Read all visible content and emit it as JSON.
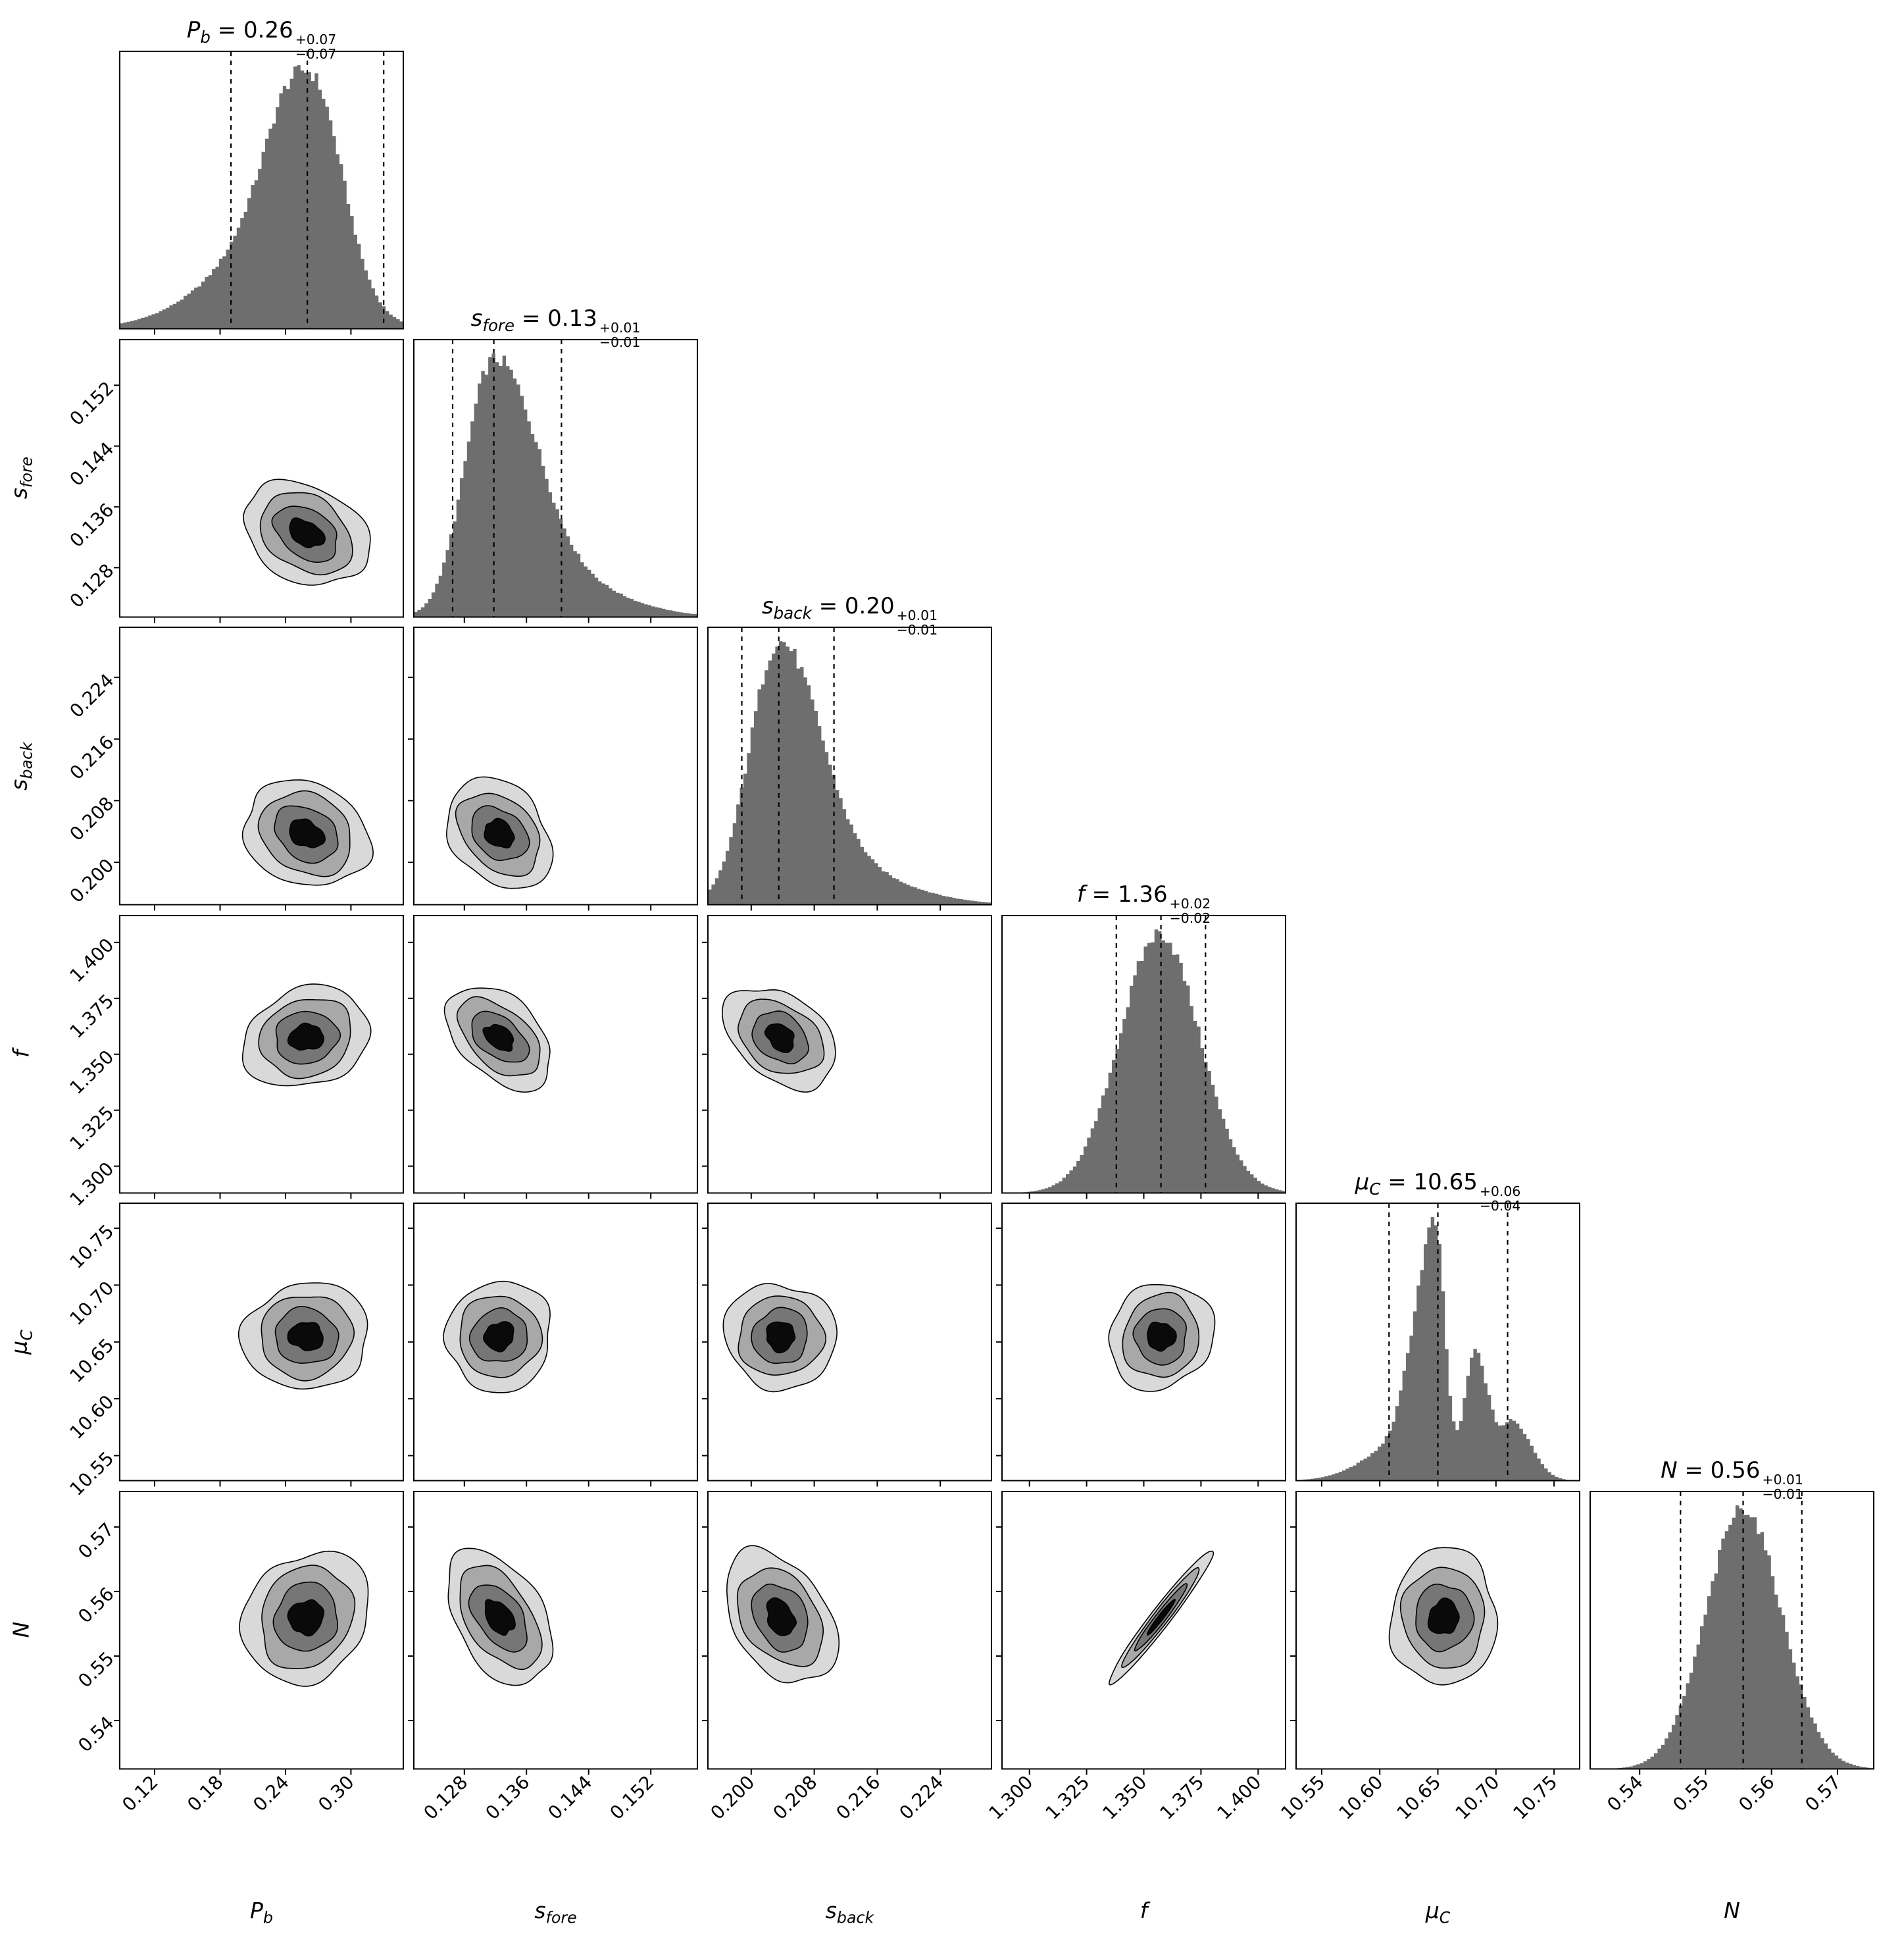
{
  "figure": {
    "background": "#ffffff"
  },
  "chart_data": {
    "type": "corner",
    "description": "6-parameter MCMC posterior corner plot: diagonal shows 1D marginal histograms with dashed lines at the 16th/50th/84th percentiles; lower triangle shows 2D filled grayscale contour plots for each parameter pair.",
    "style": {
      "hist_fill": "#6e6e6e",
      "line_color": "#000000",
      "contour_fills": [
        "#d9d9d9",
        "#a8a8a8",
        "#767676",
        "#0a0a0a"
      ],
      "levels": [
        2.05,
        1.55,
        1.05,
        0.55
      ],
      "amps": [
        0.085,
        0.075,
        0.08,
        0.13
      ]
    },
    "parameters": [
      {
        "id": "P_b",
        "label_main": "P",
        "label_sub": "b",
        "value": "0.26",
        "plus": "+0.07",
        "minus": "−0.07",
        "range": [
          0.088,
          0.348
        ],
        "tick_labels": [
          "0.12",
          "0.18",
          "0.24",
          "0.30"
        ],
        "quantiles": [
          0.19,
          0.26,
          0.33
        ],
        "center": 0.259,
        "sigma2d": 0.028,
        "hist": [
          {
            "mu": 0.264,
            "sl": 0.034,
            "sr": 0.027,
            "a": 1.0
          },
          {
            "mu": 0.228,
            "sl": 0.05,
            "sr": 0.02,
            "a": 0.22
          },
          {
            "mu": 0.2,
            "sl": 0.06,
            "sr": 0.03,
            "a": 0.1
          },
          {
            "mu": 0.3,
            "sl": 0.018,
            "sr": 0.03,
            "a": 0.07
          }
        ]
      },
      {
        "id": "s_fore",
        "label_main": "s",
        "label_sub": "fore",
        "value": "0.13",
        "plus": "+0.01",
        "minus": "−0.01",
        "range": [
          0.1215,
          0.158
        ],
        "tick_labels": [
          "0.128",
          "0.136",
          "0.144",
          "0.152"
        ],
        "quantiles": [
          0.1265,
          0.1318,
          0.1405
        ],
        "center": 0.1325,
        "sigma2d": 0.0034,
        "hist": [
          {
            "mu": 0.1315,
            "sl": 0.0035,
            "sr": 0.0052,
            "a": 1.0
          },
          {
            "mu": 0.138,
            "sl": 0.004,
            "sr": 0.0085,
            "a": 0.18
          }
        ]
      },
      {
        "id": "s_back",
        "label_main": "s",
        "label_sub": "back",
        "value": "0.20",
        "plus": "+0.01",
        "minus": "−0.01",
        "range": [
          0.1945,
          0.2305
        ],
        "tick_labels": [
          "0.200",
          "0.208",
          "0.216",
          "0.224"
        ],
        "quantiles": [
          0.1988,
          0.2035,
          0.2105
        ],
        "center": 0.2037,
        "sigma2d": 0.0034,
        "hist": [
          {
            "mu": 0.2033,
            "sl": 0.0036,
            "sr": 0.005,
            "a": 1.0
          },
          {
            "mu": 0.21,
            "sl": 0.004,
            "sr": 0.0085,
            "a": 0.15
          }
        ]
      },
      {
        "id": "f",
        "label_main": "f",
        "label_sub": "",
        "value": "1.36",
        "plus": "+0.02",
        "minus": "−0.02",
        "range": [
          1.288,
          1.412
        ],
        "tick_labels": [
          "1.300",
          "1.325",
          "1.350",
          "1.375",
          "1.400"
        ],
        "quantiles": [
          1.338,
          1.3575,
          1.377
        ],
        "center": 1.3575,
        "sigma2d": 0.011,
        "hist": [
          {
            "mu": 1.357,
            "sl": 0.0175,
            "sr": 0.0175,
            "a": 1.0
          }
        ]
      },
      {
        "id": "mu_C",
        "label_main": "μ",
        "label_sub": "C",
        "value": "10.65",
        "plus": "+0.06",
        "minus": "−0.04",
        "range": [
          10.528,
          10.772
        ],
        "tick_labels": [
          "10.55",
          "10.60",
          "10.65",
          "10.70",
          "10.75"
        ],
        "quantiles": [
          10.608,
          10.65,
          10.71
        ],
        "center": 10.655,
        "sigma2d": 0.023,
        "hist": [
          {
            "mu": 10.6475,
            "sl": 0.0165,
            "sr": 0.0085,
            "a": 1.0
          },
          {
            "mu": 10.682,
            "sl": 0.009,
            "sr": 0.012,
            "a": 0.5
          },
          {
            "mu": 10.715,
            "sl": 0.01,
            "sr": 0.016,
            "a": 0.22
          },
          {
            "mu": 10.62,
            "sl": 0.032,
            "sr": 0.01,
            "a": 0.14
          }
        ]
      },
      {
        "id": "N",
        "label_main": "N",
        "label_sub": "",
        "value": "0.56",
        "plus": "+0.01",
        "minus": "−0.01",
        "range": [
          0.5325,
          0.5755
        ],
        "tick_labels": [
          "0.54",
          "0.55",
          "0.56",
          "0.57"
        ],
        "quantiles": [
          0.5462,
          0.5557,
          0.5646
        ],
        "center": 0.556,
        "sigma2d": 0.005,
        "hist": [
          {
            "mu": 0.5557,
            "sl": 0.0056,
            "sr": 0.0058,
            "a": 1.0
          }
        ]
      }
    ],
    "rho": {
      "1-0": -0.32,
      "2-0": -0.22,
      "2-1": -0.28,
      "3-0": 0.12,
      "3-1": -0.45,
      "3-2": -0.33,
      "4-0": 0.0,
      "4-1": 0.05,
      "4-2": 0.0,
      "4-3": 0.05,
      "5-0": 0.12,
      "5-1": -0.45,
      "5-2": -0.33,
      "5-3": 0.97,
      "5-4": 0.02
    }
  }
}
